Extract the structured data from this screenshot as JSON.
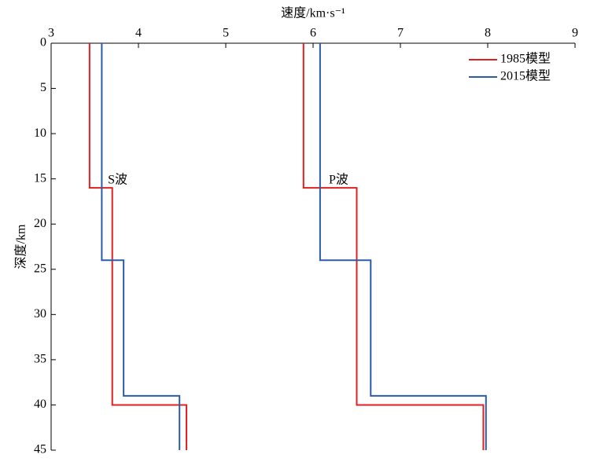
{
  "chart_data": {
    "type": "line",
    "x_label": "速度/km·s⁻¹",
    "y_label": "深度/km",
    "xlim": [
      3,
      9
    ],
    "xticks": [
      3,
      4,
      5,
      6,
      7,
      8,
      9
    ],
    "x_axis_position": "top",
    "ylim": [
      45,
      0
    ],
    "yticks": [
      0,
      5,
      10,
      15,
      20,
      25,
      30,
      35,
      40,
      45
    ],
    "grid": false,
    "legend": "upper right",
    "series": [
      {
        "name": "1985模型",
        "color": "#e02020",
        "x": [
          3.44,
          3.44,
          3.7,
          3.7,
          4.55,
          4.55,
          null,
          5.89,
          5.89,
          6.5,
          6.5,
          7.95,
          7.95
        ],
        "values": [
          0,
          16,
          16,
          40,
          40,
          45,
          null,
          0,
          16,
          16,
          40,
          40,
          45
        ]
      },
      {
        "name": "2015模型",
        "color": "#2a5ca8",
        "x": [
          3.58,
          3.58,
          3.83,
          3.83,
          4.47,
          4.47,
          null,
          6.08,
          6.08,
          6.66,
          6.66,
          7.98,
          7.98
        ],
        "values": [
          0,
          24,
          24,
          39,
          39,
          45,
          null,
          0,
          24,
          24,
          39,
          39,
          45
        ]
      }
    ],
    "annotations": [
      {
        "text": "S波",
        "x": 3.65,
        "y": 15.2
      },
      {
        "text": "P波",
        "x": 6.18,
        "y": 15.2
      }
    ]
  }
}
